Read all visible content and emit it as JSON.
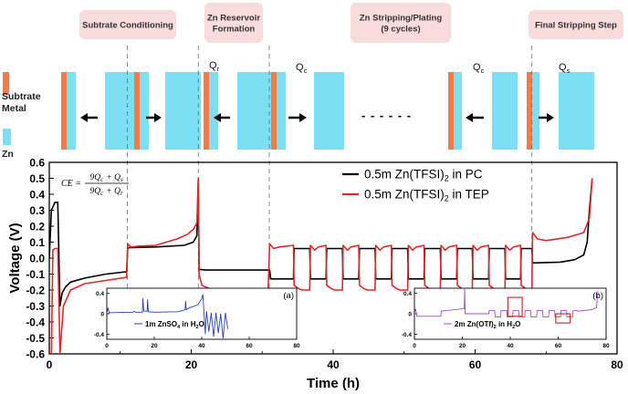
{
  "figure": {
    "stage_labels": [
      "Subtrate Conditioning",
      "Zn Reservoir Formation",
      "Zn Stripping/Plating (9 cycles)",
      "Final Stripping Step"
    ],
    "stage_label_lines": [
      [
        "Subtrate Conditioning"
      ],
      [
        "Zn Reservoir",
        "Formation"
      ],
      [
        "Zn Stripping/Plating",
        "(9 cycles)"
      ],
      [
        "Final Stripping Step"
      ]
    ],
    "legend_left": [
      "Subtrate",
      "Metal"
    ],
    "legend_zn": "Zn",
    "charge_labels": [
      {
        "q": "Q",
        "sub": "r"
      },
      {
        "q": "Q",
        "sub": "c"
      },
      {
        "q": "Q",
        "sub": "c"
      },
      {
        "q": "Q",
        "sub": "s"
      }
    ],
    "ellipsis": "- - - - - -",
    "ce_formula": {
      "lhs": "CE =",
      "numerator": "9Q_c + Q_s",
      "denominator": "9Q_c + Q_r"
    },
    "colors": {
      "substrate": "#f47b48",
      "zinc": "#7ddff4",
      "stage_box": "#f8dcdc",
      "pc": "#000000",
      "tep": "#e3262b",
      "inset_a": "#2b3eb8",
      "inset_b": "#a14bc0",
      "highlight": "#d0302f"
    }
  },
  "chart_data": [
    {
      "type": "line",
      "title": "",
      "xlabel": "Time (h)",
      "ylabel": "Voltage (V)",
      "xlim": [
        0,
        80
      ],
      "ylim": [
        -0.6,
        0.6
      ],
      "xticks": [
        0,
        20,
        40,
        60,
        80
      ],
      "yticks": [
        -0.6,
        -0.5,
        -0.4,
        -0.3,
        -0.2,
        -0.1,
        0.0,
        0.1,
        0.2,
        0.3,
        0.4,
        0.5,
        0.6
      ],
      "ytick_labels": [
        "-0.6",
        "-0.5",
        "-0.4",
        "-0.3",
        "-0.2",
        "-0.1",
        "0.0",
        "0.1",
        "0.2",
        "0.3",
        "0.4",
        "0.5",
        "0.6"
      ],
      "stage_boundaries_h": [
        11,
        21,
        31,
        68
      ],
      "legend": "top-right",
      "series": [
        {
          "name": "0.5m Zn(TFSI)2 in PC",
          "label_main": "0.5m Zn(TFSI)",
          "label_sub": "2",
          "label_tail": " in PC",
          "x": [
            0,
            0.3,
            0.6,
            0.8,
            1.2,
            1.5,
            1.8,
            2.3,
            3,
            5,
            8,
            10.9,
            11.05,
            11.2,
            15,
            19,
            20.3,
            20.8,
            21,
            21.1,
            22,
            31.05,
            31.2,
            34.4,
            34.5,
            36.7,
            36.8,
            39.0,
            39.1,
            41.3,
            41.4,
            43.6,
            43.7,
            45.9,
            46.0,
            48.2,
            48.3,
            50.5,
            50.6,
            52.8,
            52.9,
            55.1,
            55.2,
            57.4,
            57.5,
            59.6,
            59.7,
            61.9,
            62.0,
            64.2,
            64.3,
            66.4,
            66.5,
            68.0,
            68.1,
            72,
            74,
            75.3,
            75.8,
            76.1,
            76.5
          ],
          "y": [
            0.0,
            0.3,
            0.33,
            0.35,
            0.35,
            -0.3,
            -0.22,
            -0.18,
            -0.15,
            -0.125,
            -0.1,
            -0.085,
            0.06,
            0.065,
            0.07,
            0.08,
            0.1,
            0.14,
            0.5,
            -0.07,
            -0.075,
            -0.075,
            -0.13,
            -0.13,
            0.06,
            0.06,
            -0.13,
            -0.13,
            0.06,
            0.06,
            -0.13,
            -0.13,
            0.06,
            0.06,
            -0.13,
            -0.13,
            0.06,
            0.06,
            -0.13,
            -0.13,
            0.06,
            0.06,
            -0.13,
            -0.13,
            0.06,
            0.06,
            -0.13,
            -0.13,
            0.06,
            0.06,
            -0.13,
            -0.13,
            0.06,
            0.06,
            -0.03,
            -0.025,
            -0.01,
            0.02,
            0.1,
            0.3,
            0.5
          ]
        },
        {
          "name": "0.5m Zn(TFSI)2 in TEP",
          "label_main": "0.5m Zn(TFSI)",
          "label_sub": "2",
          "label_tail": " in TEP",
          "x": [
            0.3,
            0.5,
            0.8,
            1.2,
            1.5,
            2,
            3,
            5,
            8,
            10.9,
            11.05,
            11.5,
            12.5,
            15,
            18,
            19.5,
            20.3,
            20.8,
            21,
            21.1,
            21.5,
            23,
            27,
            30.8,
            31.05,
            31.6,
            32.4,
            34.4,
            34.5,
            35.1,
            35.6,
            36.7,
            36.8,
            37.4,
            37.9,
            39.0,
            39.1,
            39.7,
            40.2,
            41.3,
            41.4,
            42.0,
            42.5,
            43.6,
            43.7,
            44.3,
            44.8,
            45.9,
            46.0,
            46.6,
            47.1,
            48.2,
            48.3,
            48.9,
            49.4,
            50.5,
            50.6,
            51.2,
            51.7,
            52.8,
            52.9,
            53.5,
            54.0,
            55.1,
            55.2,
            55.8,
            56.3,
            57.4,
            57.5,
            58.1,
            58.6,
            59.6,
            59.7,
            60.3,
            60.8,
            61.9,
            62.0,
            62.6,
            63.1,
            64.2,
            64.3,
            64.9,
            65.4,
            66.4,
            66.5,
            67.1,
            67.6,
            68.0,
            68.1,
            68.8,
            70,
            73,
            75.3,
            76.1,
            76.5
          ],
          "y": [
            -0.6,
            0.05,
            0.06,
            0.06,
            -0.6,
            -0.3,
            -0.2,
            -0.16,
            -0.14,
            -0.12,
            0.09,
            0.07,
            0.075,
            0.08,
            0.12,
            0.15,
            0.18,
            0.22,
            0.5,
            -0.1,
            -0.17,
            -0.2,
            -0.23,
            -0.24,
            0.09,
            0.06,
            0.07,
            0.08,
            -0.17,
            -0.19,
            -0.2,
            -0.2,
            0.08,
            0.05,
            0.07,
            0.08,
            -0.17,
            -0.19,
            -0.2,
            -0.2,
            0.08,
            0.05,
            0.07,
            0.08,
            -0.17,
            -0.19,
            -0.2,
            -0.2,
            0.08,
            0.05,
            0.07,
            0.08,
            -0.17,
            -0.19,
            -0.2,
            -0.2,
            0.08,
            0.05,
            0.07,
            0.08,
            -0.17,
            -0.19,
            -0.2,
            -0.2,
            0.08,
            0.05,
            0.07,
            0.08,
            -0.17,
            -0.19,
            -0.2,
            -0.2,
            0.08,
            0.05,
            0.07,
            0.08,
            -0.17,
            -0.19,
            -0.2,
            -0.2,
            0.08,
            0.05,
            0.07,
            0.08,
            -0.17,
            -0.19,
            -0.2,
            -0.2,
            0.16,
            0.12,
            0.11,
            0.13,
            0.16,
            0.25,
            0.5
          ]
        }
      ]
    },
    {
      "type": "line",
      "panel_label": "(a)",
      "legend": "1m ZnSO4 in H2O",
      "legend_parts": {
        "pre": "1m ZnSO",
        "sub1": "4",
        "mid": " in H",
        "sub2": "2",
        "post": "O"
      },
      "xlim": [
        0,
        80
      ],
      "ylim": [
        -0.5,
        0.5
      ],
      "xticks": [
        0,
        20,
        40,
        60,
        80
      ],
      "yticks": [
        -0.4,
        0.0,
        0.4
      ],
      "ytick_labels": [
        "-0.4",
        "0",
        "0.4"
      ],
      "series": [
        {
          "name": "1m ZnSO4 in H2O",
          "x": [
            0,
            0.5,
            1,
            11,
            11.5,
            12,
            15,
            15.2,
            15.6,
            17,
            17.2,
            17.5,
            20,
            30,
            32,
            33,
            33.2,
            33.5,
            35,
            37,
            38.5,
            40,
            40.5,
            41,
            41.5,
            42,
            43,
            44,
            45,
            46,
            47,
            48,
            49,
            50,
            51
          ],
          "y": [
            0.0,
            0.12,
            0.02,
            0.03,
            0.05,
            0.03,
            0.03,
            0.3,
            0.05,
            0.05,
            0.28,
            0.04,
            0.03,
            0.04,
            0.06,
            0.08,
            0.25,
            0.08,
            0.12,
            0.15,
            0.18,
            0.3,
            0.38,
            -0.02,
            -0.4,
            0.05,
            -0.35,
            0.02,
            -0.45,
            0.02,
            -0.38,
            0.0,
            -0.48,
            0.02,
            -0.3
          ]
        }
      ]
    },
    {
      "type": "line",
      "panel_label": "(b)",
      "legend": "2m Zn(OTf)2 in H2O",
      "legend_parts": {
        "pre": "2m Zn(OTf)",
        "sub1": "2",
        "mid": " in H",
        "sub2": "2",
        "post": "O"
      },
      "xlim": [
        0,
        80
      ],
      "ylim": [
        -0.5,
        0.5
      ],
      "xticks": [
        0,
        20,
        40,
        60,
        80
      ],
      "yticks": [
        -0.4,
        0.0,
        0.4
      ],
      "ytick_labels": [
        "-0.4",
        "0",
        "0.4"
      ],
      "series": [
        {
          "name": "2m Zn(OTf)2 in H2O",
          "x": [
            0,
            0.5,
            1,
            11,
            11.2,
            20.8,
            21,
            21.2,
            31,
            31.2,
            33.5,
            33.7,
            36,
            36.2,
            38.5,
            38.7,
            41,
            41.2,
            43.5,
            43.7,
            46,
            46.2,
            48.5,
            48.7,
            51,
            51.2,
            53.5,
            53.7,
            56,
            56.2,
            58.5,
            58.7,
            61,
            61.2,
            63.5,
            63.7,
            66,
            66.2,
            68,
            68.2,
            74,
            76,
            76.3,
            76.6
          ],
          "y": [
            0.0,
            0.1,
            -0.05,
            -0.05,
            0.05,
            0.1,
            0.5,
            0.0,
            0.0,
            0.06,
            0.06,
            -0.06,
            -0.06,
            0.06,
            0.06,
            -0.06,
            -0.06,
            0.06,
            0.06,
            -0.06,
            -0.06,
            0.06,
            0.06,
            -0.06,
            -0.06,
            0.06,
            0.06,
            -0.06,
            -0.06,
            0.06,
            0.06,
            -0.06,
            -0.06,
            0.06,
            0.06,
            -0.06,
            -0.06,
            0.06,
            0.06,
            0.05,
            0.08,
            0.12,
            0.3,
            0.45
          ]
        }
      ],
      "highlight_regions": [
        {
          "x": [
            39,
            45
          ],
          "y": [
            -0.05,
            0.32
          ]
        },
        {
          "x": [
            59,
            65
          ],
          "y": [
            -0.18,
            0.0
          ]
        }
      ]
    }
  ]
}
